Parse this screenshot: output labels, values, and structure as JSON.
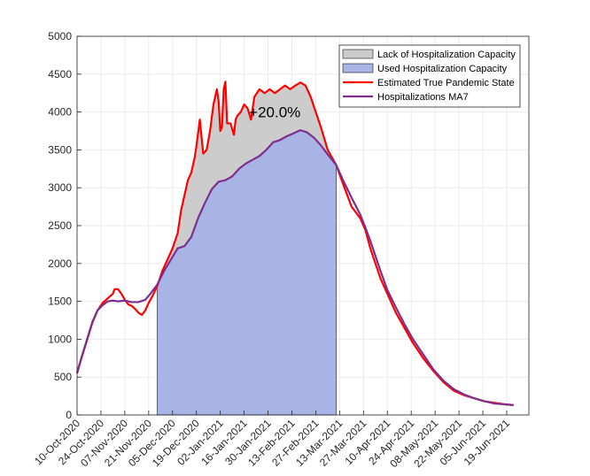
{
  "chart_data": {
    "type": "area",
    "title": "",
    "xlabel": "",
    "ylabel": "",
    "ylim": [
      0,
      5000
    ],
    "yticks": [
      0,
      500,
      1000,
      1500,
      2000,
      2500,
      3000,
      3500,
      4000,
      4500,
      5000
    ],
    "xlim": [
      "2020-10-10",
      "2021-07-02"
    ],
    "xticks": [
      "10-Oct-2020",
      "24-Oct-2020",
      "07-Nov-2020",
      "21-Nov-2020",
      "05-Dec-2020",
      "19-Dec-2020",
      "02-Jan-2021",
      "16-Jan-2021",
      "30-Jan-2021",
      "13-Feb-2021",
      "27-Feb-2021",
      "13-Mar-2021",
      "27-Mar-2021",
      "10-Apr-2021",
      "24-Apr-2021",
      "08-May-2021",
      "22-May-2021",
      "05-Jun-2021",
      "19-Jun-2021"
    ],
    "grid": true,
    "legend_position": "top-right",
    "annotation": {
      "text": "+20.0%",
      "x": "2021-02-03",
      "y": 3930
    },
    "shade_range": [
      "2020-11-26",
      "2021-03-11"
    ],
    "series": [
      {
        "name": "Lack of Hospitalization Capacity",
        "kind": "fill-between",
        "color": "#cccccc"
      },
      {
        "name": "Used Hospitalization Capacity",
        "kind": "fill-under",
        "color": "#a8b3e6"
      },
      {
        "name": "Estimated True Pandemic State",
        "kind": "line",
        "color": "#ff0000",
        "x": [
          "2020-10-10",
          "2020-10-13",
          "2020-10-16",
          "2020-10-19",
          "2020-10-22",
          "2020-10-25",
          "2020-10-28",
          "2020-10-31",
          "2020-11-01",
          "2020-11-03",
          "2020-11-05",
          "2020-11-07",
          "2020-11-09",
          "2020-11-11",
          "2020-11-13",
          "2020-11-15",
          "2020-11-17",
          "2020-11-19",
          "2020-11-21",
          "2020-11-23",
          "2020-11-26",
          "2020-11-29",
          "2020-12-02",
          "2020-12-05",
          "2020-12-08",
          "2020-12-10",
          "2020-12-12",
          "2020-12-14",
          "2020-12-16",
          "2020-12-17",
          "2020-12-18",
          "2020-12-19",
          "2020-12-21",
          "2020-12-23",
          "2020-12-25",
          "2020-12-27",
          "2020-12-29",
          "2020-12-31",
          "2021-01-01",
          "2021-01-02",
          "2021-01-03",
          "2021-01-04",
          "2021-01-05",
          "2021-01-06",
          "2021-01-08",
          "2021-01-10",
          "2021-01-11",
          "2021-01-12",
          "2021-01-14",
          "2021-01-16",
          "2021-01-18",
          "2021-01-20",
          "2021-01-22",
          "2021-01-25",
          "2021-01-28",
          "2021-01-31",
          "2021-02-03",
          "2021-02-06",
          "2021-02-09",
          "2021-02-12",
          "2021-02-15",
          "2021-02-18",
          "2021-02-21",
          "2021-02-24",
          "2021-02-27",
          "2021-03-02",
          "2021-03-06",
          "2021-03-11",
          "2021-03-15",
          "2021-03-20",
          "2021-03-25",
          "2021-03-28",
          "2021-03-31",
          "2021-04-03",
          "2021-04-06",
          "2021-04-10",
          "2021-04-15",
          "2021-04-20",
          "2021-04-25",
          "2021-05-01",
          "2021-05-07",
          "2021-05-13",
          "2021-05-19",
          "2021-05-25",
          "2021-05-31",
          "2021-06-06",
          "2021-06-12",
          "2021-06-18",
          "2021-06-23"
        ],
        "values": [
          550,
          780,
          1000,
          1220,
          1380,
          1480,
          1540,
          1600,
          1660,
          1660,
          1600,
          1520,
          1460,
          1440,
          1400,
          1350,
          1320,
          1380,
          1480,
          1560,
          1700,
          1900,
          2050,
          2200,
          2400,
          2700,
          2900,
          3100,
          3200,
          3300,
          3400,
          3550,
          3900,
          3450,
          3500,
          3750,
          4100,
          4300,
          4150,
          3750,
          3800,
          4300,
          4400,
          3850,
          3850,
          3700,
          3900,
          3950,
          4000,
          4100,
          4050,
          3900,
          4200,
          4300,
          4250,
          4300,
          4250,
          4300,
          4350,
          4300,
          4350,
          4390,
          4350,
          4200,
          4000,
          3800,
          3500,
          3300,
          3050,
          2750,
          2600,
          2450,
          2200,
          2000,
          1800,
          1600,
          1350,
          1150,
          950,
          750,
          580,
          430,
          320,
          260,
          220,
          180,
          160,
          140,
          130
        ]
      },
      {
        "name": "Hospitalizations MA7",
        "kind": "line",
        "color": "#7e2f8e",
        "x": [
          "2020-10-10",
          "2020-10-13",
          "2020-10-16",
          "2020-10-19",
          "2020-10-22",
          "2020-10-25",
          "2020-10-28",
          "2020-10-31",
          "2020-11-03",
          "2020-11-07",
          "2020-11-11",
          "2020-11-15",
          "2020-11-19",
          "2020-11-22",
          "2020-11-26",
          "2020-11-30",
          "2020-12-04",
          "2020-12-08",
          "2020-12-12",
          "2020-12-16",
          "2020-12-20",
          "2020-12-24",
          "2020-12-28",
          "2021-01-01",
          "2021-01-05",
          "2021-01-09",
          "2021-01-13",
          "2021-01-17",
          "2021-01-21",
          "2021-01-25",
          "2021-01-29",
          "2021-02-02",
          "2021-02-06",
          "2021-02-10",
          "2021-02-14",
          "2021-02-18",
          "2021-02-22",
          "2021-02-26",
          "2021-03-02",
          "2021-03-06",
          "2021-03-11",
          "2021-03-15",
          "2021-03-20",
          "2021-03-25",
          "2021-03-28",
          "2021-03-31",
          "2021-04-03",
          "2021-04-06",
          "2021-04-10",
          "2021-04-15",
          "2021-04-20",
          "2021-04-25",
          "2021-05-01",
          "2021-05-07",
          "2021-05-13",
          "2021-05-19",
          "2021-05-25",
          "2021-05-31",
          "2021-06-06",
          "2021-06-12",
          "2021-06-18",
          "2021-06-23"
        ],
        "values": [
          560,
          790,
          1010,
          1230,
          1380,
          1450,
          1500,
          1510,
          1500,
          1510,
          1490,
          1490,
          1520,
          1600,
          1720,
          1900,
          2050,
          2200,
          2230,
          2350,
          2600,
          2800,
          2980,
          3080,
          3100,
          3150,
          3250,
          3320,
          3370,
          3420,
          3500,
          3600,
          3630,
          3680,
          3720,
          3760,
          3730,
          3660,
          3560,
          3440,
          3300,
          3100,
          2870,
          2650,
          2480,
          2300,
          2100,
          1900,
          1650,
          1420,
          1200,
          1000,
          800,
          600,
          450,
          340,
          270,
          220,
          180,
          150,
          140,
          130
        ]
      }
    ]
  }
}
